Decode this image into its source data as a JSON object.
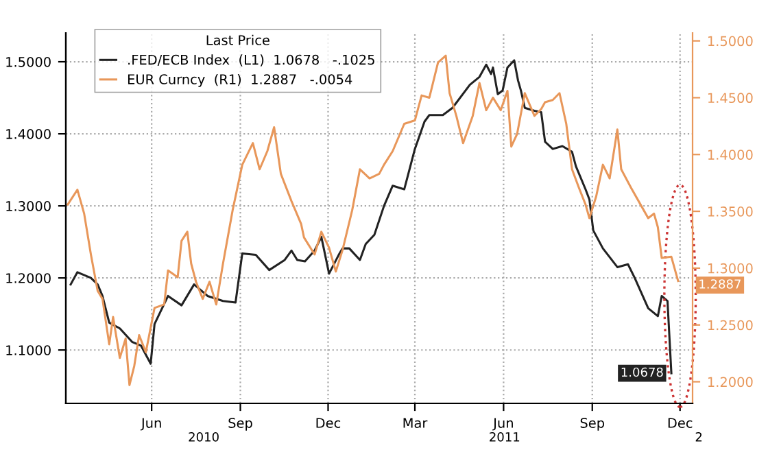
{
  "chart_data": {
    "type": "line",
    "legend_title": "Last Price",
    "legend": "top left",
    "grid": true,
    "line_style": "solid",
    "marker": "none",
    "xlim": [
      "2010-03-04",
      "2011-12-14"
    ],
    "xticks": [
      {
        "value": "2010-06-01",
        "label": "Jun"
      },
      {
        "value": "2010-09-01",
        "label": "Sep"
      },
      {
        "value": "2010-12-01",
        "label": "Dec"
      },
      {
        "value": "2011-03-01",
        "label": "Mar"
      },
      {
        "value": "2011-06-01",
        "label": "Jun"
      },
      {
        "value": "2011-09-01",
        "label": "Sep"
      },
      {
        "value": "2011-12-01",
        "label": "Dec"
      }
    ],
    "ylim": [
      1.026,
      1.54
    ],
    "yticks": [
      {
        "value": 1.1,
        "label": "1.1000"
      },
      {
        "value": 1.2,
        "label": "1.2000"
      },
      {
        "value": 1.3,
        "label": "1.3000"
      },
      {
        "value": 1.4,
        "label": "1.4000"
      },
      {
        "value": 1.5,
        "label": "1.5000"
      }
    ],
    "y2lim": [
      1.181,
      1.507
    ],
    "y2ticks": [
      {
        "value": 1.2,
        "label": "1.2000"
      },
      {
        "value": 1.25,
        "label": "1.2500"
      },
      {
        "value": 1.3,
        "label": "1.3000"
      },
      {
        "value": 1.35,
        "label": "1.3500"
      },
      {
        "value": 1.4,
        "label": "1.4000"
      },
      {
        "value": 1.45,
        "label": "1.4500"
      },
      {
        "value": 1.5,
        "label": "1.5000"
      }
    ],
    "annotations": [
      "2010",
      "2011",
      "2"
    ],
    "series": [
      {
        "name": ".FED/ECB Index  (L1)  1.0678   -.1025",
        "color": "#222222",
        "axis": "y",
        "x": [
          "2010-03-09",
          "2010-03-16",
          "2010-03-30",
          "2010-04-06",
          "2010-04-11",
          "2010-04-18",
          "2010-04-29",
          "2010-05-12",
          "2010-05-21",
          "2010-05-31",
          "2010-06-04",
          "2010-06-18",
          "2010-07-02",
          "2010-07-15",
          "2010-07-29",
          "2010-08-14",
          "2010-08-27",
          "2010-09-03",
          "2010-09-17",
          "2010-10-01",
          "2010-10-17",
          "2010-10-24",
          "2010-10-30",
          "2010-11-07",
          "2010-11-17",
          "2010-11-24",
          "2010-12-02",
          "2010-12-12",
          "2010-12-16",
          "2010-12-23",
          "2011-01-03",
          "2011-01-09",
          "2011-01-18",
          "2011-01-28",
          "2011-02-06",
          "2011-02-18",
          "2011-03-01",
          "2011-03-11",
          "2011-03-16",
          "2011-03-30",
          "2011-04-09",
          "2011-04-27",
          "2011-05-07",
          "2011-05-14",
          "2011-05-19",
          "2011-05-21",
          "2011-05-26",
          "2011-05-31",
          "2011-06-05",
          "2011-06-12",
          "2011-06-16",
          "2011-06-19",
          "2011-06-23",
          "2011-07-03",
          "2011-07-10",
          "2011-07-14",
          "2011-07-22",
          "2011-08-01",
          "2011-08-11",
          "2011-08-15",
          "2011-08-25",
          "2011-08-29",
          "2011-09-02",
          "2011-09-12",
          "2011-09-27",
          "2011-10-08",
          "2011-10-15",
          "2011-10-29",
          "2011-11-08",
          "2011-11-12",
          "2011-11-18",
          "2011-11-22"
        ],
        "values": [
          1.191,
          1.208,
          1.2,
          1.191,
          1.175,
          1.138,
          1.13,
          1.111,
          1.106,
          1.081,
          1.136,
          1.175,
          1.162,
          1.191,
          1.175,
          1.168,
          1.166,
          1.234,
          1.232,
          1.211,
          1.225,
          1.238,
          1.225,
          1.223,
          1.238,
          1.257,
          1.206,
          1.232,
          1.241,
          1.241,
          1.225,
          1.247,
          1.26,
          1.3,
          1.328,
          1.323,
          1.379,
          1.417,
          1.426,
          1.426,
          1.436,
          1.468,
          1.479,
          1.496,
          1.483,
          1.492,
          1.455,
          1.46,
          1.492,
          1.502,
          1.474,
          1.46,
          1.436,
          1.432,
          1.43,
          1.389,
          1.379,
          1.383,
          1.375,
          1.355,
          1.323,
          1.309,
          1.266,
          1.241,
          1.215,
          1.219,
          1.2,
          1.158,
          1.147,
          1.175,
          1.168,
          1.0678
        ],
        "value_labels": [
          null,
          null,
          null,
          null,
          null,
          null,
          null,
          null,
          null,
          null,
          null,
          null,
          null,
          null,
          null,
          null,
          null,
          null,
          null,
          null,
          null,
          null,
          null,
          null,
          null,
          null,
          null,
          null,
          null,
          null,
          null,
          null,
          null,
          null,
          null,
          null,
          null,
          null,
          null,
          null,
          null,
          null,
          null,
          null,
          null,
          null,
          null,
          null,
          null,
          null,
          null,
          null,
          null,
          null,
          null,
          null,
          null,
          null,
          null,
          null,
          null,
          null,
          null,
          null,
          null,
          null,
          null,
          null,
          null,
          null,
          null,
          "1.0678"
        ]
      },
      {
        "name": "EUR Curncy  (R1)  1.2887   -.0054",
        "color": "#e8975a",
        "axis": "y2",
        "x": [
          "2010-03-06",
          "2010-03-16",
          "2010-03-23",
          "2010-03-30",
          "2010-04-06",
          "2010-04-11",
          "2010-04-18",
          "2010-04-22",
          "2010-04-29",
          "2010-05-05",
          "2010-05-09",
          "2010-05-14",
          "2010-05-19",
          "2010-05-26",
          "2010-06-04",
          "2010-06-14",
          "2010-06-18",
          "2010-06-28",
          "2010-07-02",
          "2010-07-08",
          "2010-07-12",
          "2010-07-17",
          "2010-07-24",
          "2010-07-31",
          "2010-08-07",
          "2010-08-14",
          "2010-08-24",
          "2010-09-03",
          "2010-09-14",
          "2010-09-21",
          "2010-09-29",
          "2010-10-06",
          "2010-10-13",
          "2010-10-24",
          "2010-11-03",
          "2010-11-06",
          "2010-11-17",
          "2010-11-24",
          "2010-12-02",
          "2010-12-09",
          "2010-12-16",
          "2010-12-26",
          "2011-01-03",
          "2011-01-13",
          "2011-01-23",
          "2011-01-28",
          "2011-02-06",
          "2011-02-18",
          "2011-03-01",
          "2011-03-08",
          "2011-03-16",
          "2011-03-25",
          "2011-04-02",
          "2011-04-06",
          "2011-04-13",
          "2011-04-20",
          "2011-04-30",
          "2011-05-07",
          "2011-05-14",
          "2011-05-21",
          "2011-05-29",
          "2011-06-05",
          "2011-06-09",
          "2011-06-15",
          "2011-06-23",
          "2011-07-03",
          "2011-07-10",
          "2011-07-14",
          "2011-07-22",
          "2011-07-29",
          "2011-08-05",
          "2011-08-11",
          "2011-08-18",
          "2011-08-25",
          "2011-08-29",
          "2011-09-05",
          "2011-09-12",
          "2011-09-19",
          "2011-09-27",
          "2011-10-01",
          "2011-10-11",
          "2011-10-21",
          "2011-10-29",
          "2011-11-04",
          "2011-11-08",
          "2011-11-12",
          "2011-11-22",
          "2011-11-29"
        ],
        "values": [
          1.356,
          1.369,
          1.348,
          1.312,
          1.28,
          1.273,
          1.233,
          1.257,
          1.221,
          1.238,
          1.197,
          1.214,
          1.241,
          1.226,
          1.265,
          1.268,
          1.298,
          1.292,
          1.324,
          1.332,
          1.304,
          1.288,
          1.273,
          1.288,
          1.268,
          1.304,
          1.351,
          1.391,
          1.41,
          1.387,
          1.403,
          1.424,
          1.383,
          1.359,
          1.339,
          1.327,
          1.312,
          1.332,
          1.318,
          1.297,
          1.316,
          1.351,
          1.387,
          1.379,
          1.383,
          1.391,
          1.403,
          1.427,
          1.43,
          1.452,
          1.45,
          1.481,
          1.487,
          1.454,
          1.434,
          1.41,
          1.434,
          1.463,
          1.439,
          1.45,
          1.439,
          1.456,
          1.407,
          1.418,
          1.454,
          1.434,
          1.44,
          1.446,
          1.448,
          1.454,
          1.427,
          1.387,
          1.371,
          1.356,
          1.344,
          1.363,
          1.391,
          1.379,
          1.422,
          1.387,
          1.371,
          1.356,
          1.344,
          1.348,
          1.336,
          1.309,
          1.31,
          1.2887
        ],
        "value_labels": [
          null,
          null,
          null,
          null,
          null,
          null,
          null,
          null,
          null,
          null,
          null,
          null,
          null,
          null,
          null,
          null,
          null,
          null,
          null,
          null,
          null,
          null,
          null,
          null,
          null,
          null,
          null,
          null,
          null,
          null,
          null,
          null,
          null,
          null,
          null,
          null,
          null,
          null,
          null,
          null,
          null,
          null,
          null,
          null,
          null,
          null,
          null,
          null,
          null,
          null,
          null,
          null,
          null,
          null,
          null,
          null,
          null,
          null,
          null,
          null,
          null,
          null,
          null,
          null,
          null,
          null,
          null,
          null,
          null,
          null,
          null,
          null,
          null,
          null,
          null,
          null,
          null,
          null,
          null,
          null,
          null,
          null,
          null,
          null,
          null,
          null,
          null,
          "1.2887"
        ]
      }
    ]
  }
}
